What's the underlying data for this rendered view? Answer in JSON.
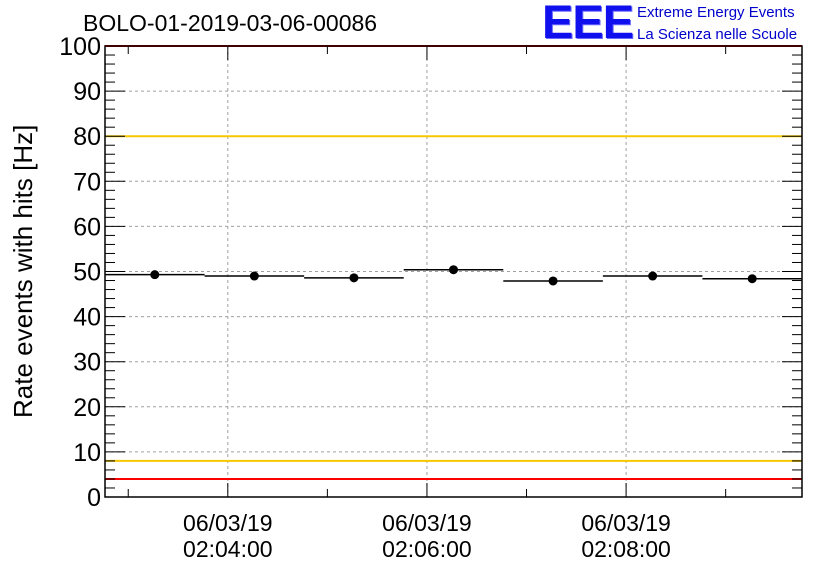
{
  "logo": {
    "mark": "EEE",
    "line1": "Extreme Energy Events",
    "line2": "La Scienza nelle Scuole"
  },
  "colors": {
    "red_limit": "#ff0000",
    "yellow_limit": "#f5c800",
    "grid": "#a0a0a0",
    "marker": "#000000"
  },
  "chart_data": {
    "type": "scatter",
    "title": "BOLO-01-2019-03-06-00086",
    "xlabel": "",
    "ylabel": "Rate events with hits [Hz]",
    "ylim": [
      0,
      100
    ],
    "yticks": [
      0,
      10,
      20,
      30,
      40,
      50,
      60,
      70,
      80,
      90,
      100
    ],
    "xlim": [
      "02:02:46",
      "02:09:46"
    ],
    "xticks": [
      {
        "time": "02:04:00",
        "date": "06/03/19",
        "label": "02:04:00"
      },
      {
        "time": "02:06:00",
        "date": "06/03/19",
        "label": "02:06:00"
      },
      {
        "time": "02:08:00",
        "date": "06/03/19",
        "label": "02:08:00"
      }
    ],
    "bin_width_seconds": 60,
    "points": [
      {
        "x": "02:03:16",
        "y": 49.3
      },
      {
        "x": "02:04:16",
        "y": 49.0
      },
      {
        "x": "02:05:16",
        "y": 48.6
      },
      {
        "x": "02:06:16",
        "y": 50.4
      },
      {
        "x": "02:07:16",
        "y": 47.9
      },
      {
        "x": "02:08:16",
        "y": 49.0
      },
      {
        "x": "02:09:16",
        "y": 48.4
      }
    ],
    "reference_lines": [
      {
        "y": 100,
        "color": "red"
      },
      {
        "y": 80,
        "color": "yellow"
      },
      {
        "y": 8,
        "color": "yellow"
      },
      {
        "y": 4,
        "color": "red"
      }
    ],
    "grid": true
  }
}
